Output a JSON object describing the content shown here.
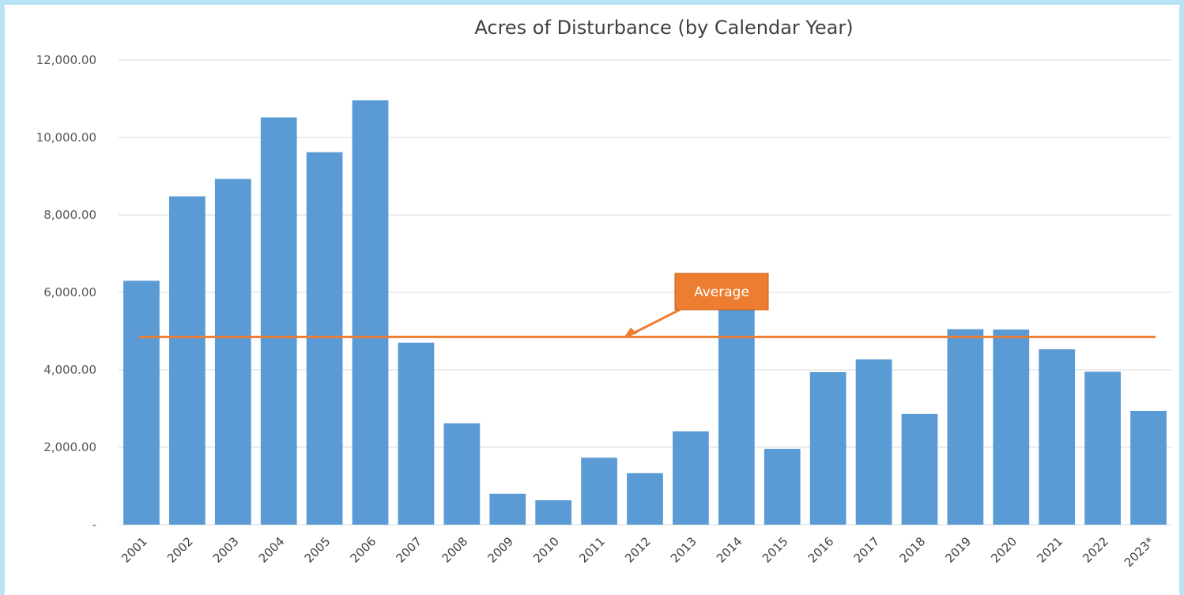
{
  "chart_data": {
    "type": "bar",
    "title": "Acres of Disturbance (by Calendar Year)",
    "xlabel": "",
    "ylabel": "",
    "categories": [
      "2001",
      "2002",
      "2003",
      "2004",
      "2005",
      "2006",
      "2007",
      "2008",
      "2009",
      "2010",
      "2011",
      "2012",
      "2013",
      "2014",
      "2015",
      "2016",
      "2017",
      "2018",
      "2019",
      "2020",
      "2021",
      "2022",
      "2023*"
    ],
    "values": [
      6300,
      8480,
      8930,
      10520,
      9620,
      10960,
      4700,
      2620,
      800,
      630,
      1730,
      1330,
      2410,
      5800,
      1960,
      3940,
      4270,
      2860,
      5050,
      5040,
      4530,
      3950,
      2940
    ],
    "ylim": [
      0,
      12000
    ],
    "yticks": [
      0,
      2000,
      4000,
      6000,
      8000,
      10000,
      12000
    ],
    "ytick_labels": [
      "-",
      "2,000.00",
      "4,000.00",
      "6,000.00",
      "8,000.00",
      "10,000.00",
      "12,000.00"
    ],
    "grid": true,
    "bar_color": "#5b9bd5",
    "average": {
      "value": 4850,
      "label": "Average",
      "color": "#ed7d31"
    }
  }
}
